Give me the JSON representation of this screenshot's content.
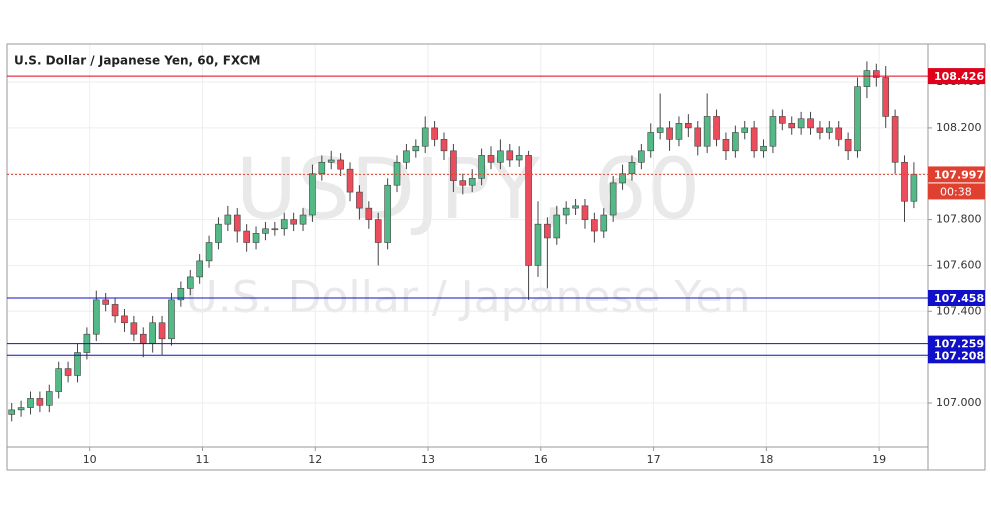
{
  "chart_data": {
    "type": "candlestick",
    "title": "U.S. Dollar / Japanese Yen, 60, FXCM",
    "watermark": "USDJPY, 60",
    "watermark_subtitle": "U.S. Dollar / Japanese Yen",
    "countdown": "00:38",
    "up_color": "#53b987",
    "down_color": "#eb4d5c",
    "open": [
      106.95,
      106.97,
      106.98,
      107.02,
      106.99,
      107.05,
      107.15,
      107.12,
      107.22,
      107.3,
      107.45,
      107.43,
      107.38,
      107.35,
      107.3,
      107.26,
      107.35,
      107.28,
      107.45,
      107.5,
      107.55,
      107.62,
      107.7,
      107.78,
      107.82,
      107.75,
      107.7,
      107.74,
      107.76,
      107.76,
      107.8,
      107.78,
      107.82,
      108.0,
      108.05,
      108.06,
      108.02,
      107.92,
      107.85,
      107.8,
      107.7,
      107.95,
      108.05,
      108.1,
      108.12,
      108.2,
      108.15,
      108.1,
      107.97,
      107.95,
      107.98,
      108.08,
      108.05,
      108.1,
      108.06,
      108.08,
      107.6,
      107.78,
      107.72,
      107.82,
      107.85,
      107.86,
      107.8,
      107.75,
      107.82,
      107.96,
      108.0,
      108.05,
      108.1,
      108.18,
      108.2,
      108.15,
      108.22,
      108.2,
      108.12,
      108.25,
      108.15,
      108.1,
      108.18,
      108.2,
      108.1,
      108.12,
      108.25,
      108.22,
      108.2,
      108.24,
      108.2,
      108.18,
      108.2,
      108.15,
      108.1,
      108.38,
      108.45,
      108.42,
      108.25,
      108.05,
      107.88
    ],
    "high": [
      107.0,
      107.01,
      107.05,
      107.05,
      107.08,
      107.18,
      107.18,
      107.26,
      107.33,
      107.49,
      107.48,
      107.46,
      107.41,
      107.38,
      107.33,
      107.38,
      107.38,
      107.48,
      107.53,
      107.58,
      107.65,
      107.73,
      107.81,
      107.86,
      107.85,
      107.78,
      107.77,
      107.79,
      107.79,
      107.83,
      107.83,
      107.85,
      108.04,
      108.08,
      108.1,
      108.09,
      108.05,
      107.95,
      107.88,
      107.83,
      107.98,
      108.08,
      108.13,
      108.15,
      108.25,
      108.23,
      108.18,
      108.13,
      108.0,
      108.02,
      108.11,
      108.12,
      108.15,
      108.13,
      108.12,
      108.1,
      107.88,
      107.81,
      107.86,
      107.88,
      107.89,
      107.89,
      107.83,
      107.85,
      107.99,
      108.04,
      108.08,
      108.13,
      108.22,
      108.35,
      108.23,
      108.25,
      108.26,
      108.23,
      108.35,
      108.28,
      108.18,
      108.21,
      108.23,
      108.23,
      108.15,
      108.28,
      108.28,
      108.25,
      108.27,
      108.27,
      108.23,
      108.23,
      108.23,
      108.18,
      108.42,
      108.49,
      108.48,
      108.47,
      108.28,
      108.08,
      108.05
    ],
    "low": [
      106.92,
      106.94,
      106.95,
      106.96,
      106.96,
      107.02,
      107.09,
      107.09,
      107.19,
      107.27,
      107.4,
      107.35,
      107.31,
      107.27,
      107.2,
      107.22,
      107.21,
      107.25,
      107.42,
      107.47,
      107.52,
      107.59,
      107.67,
      107.75,
      107.7,
      107.66,
      107.67,
      107.71,
      107.73,
      107.73,
      107.75,
      107.75,
      107.79,
      107.97,
      108.02,
      107.99,
      107.88,
      107.8,
      107.76,
      107.6,
      107.67,
      107.92,
      108.02,
      108.07,
      108.09,
      108.12,
      108.06,
      107.92,
      107.91,
      107.92,
      107.95,
      108.02,
      108.02,
      108.03,
      108.03,
      107.45,
      107.55,
      107.5,
      107.69,
      107.78,
      107.82,
      107.76,
      107.7,
      107.72,
      107.79,
      107.93,
      107.97,
      108.02,
      108.07,
      108.15,
      108.1,
      108.12,
      108.16,
      108.08,
      108.09,
      108.12,
      108.06,
      108.07,
      108.15,
      108.07,
      108.07,
      108.09,
      108.19,
      108.17,
      108.17,
      108.17,
      108.15,
      108.15,
      108.12,
      108.06,
      108.07,
      108.33,
      108.38,
      108.2,
      108.0,
      107.79,
      107.85
    ],
    "close": [
      106.97,
      106.98,
      107.02,
      106.99,
      107.05,
      107.15,
      107.12,
      107.22,
      107.3,
      107.45,
      107.43,
      107.38,
      107.35,
      107.3,
      107.26,
      107.35,
      107.28,
      107.45,
      107.5,
      107.55,
      107.62,
      107.7,
      107.78,
      107.82,
      107.75,
      107.7,
      107.74,
      107.76,
      107.76,
      107.8,
      107.78,
      107.82,
      108.0,
      108.05,
      108.06,
      108.02,
      107.92,
      107.85,
      107.8,
      107.7,
      107.95,
      108.05,
      108.1,
      108.12,
      108.2,
      108.15,
      108.1,
      107.97,
      107.95,
      107.98,
      108.08,
      108.05,
      108.1,
      108.06,
      108.08,
      107.6,
      107.78,
      107.72,
      107.82,
      107.85,
      107.86,
      107.8,
      107.75,
      107.82,
      107.96,
      108.0,
      108.05,
      108.1,
      108.18,
      108.2,
      108.15,
      108.22,
      108.2,
      108.12,
      108.25,
      108.15,
      108.1,
      108.18,
      108.2,
      108.1,
      108.12,
      108.25,
      108.22,
      108.2,
      108.24,
      108.2,
      108.18,
      108.2,
      108.15,
      108.1,
      108.38,
      108.45,
      108.42,
      108.25,
      108.05,
      107.88,
      107.997
    ],
    "xlim": [
      -0.5,
      97.5
    ],
    "xticks": [
      {
        "value": 8.3,
        "label": "10"
      },
      {
        "value": 20.3,
        "label": "11"
      },
      {
        "value": 32.3,
        "label": "12"
      },
      {
        "value": 44.3,
        "label": "13"
      },
      {
        "value": 56.3,
        "label": "16"
      },
      {
        "value": 68.3,
        "label": "17"
      },
      {
        "value": 80.3,
        "label": "18"
      },
      {
        "value": 92.3,
        "label": "19"
      }
    ],
    "ylim": [
      106.808,
      108.566
    ],
    "yticks": [
      {
        "value": 107.0,
        "label": "107.000"
      },
      {
        "value": 107.2,
        "label": "107.200"
      },
      {
        "value": 107.4,
        "label": "107.400"
      },
      {
        "value": 107.6,
        "label": "107.600"
      },
      {
        "value": 107.8,
        "label": "107.800"
      },
      {
        "value": 108.0,
        "label": "108.000"
      },
      {
        "value": 108.2,
        "label": "108.200"
      },
      {
        "value": 108.4,
        "label": "108.400"
      }
    ],
    "grid": true,
    "levels": [
      {
        "value": 108.426,
        "color": "#e0001a",
        "style": "solid"
      },
      {
        "value": 107.997,
        "color": "#e0402f",
        "style": "dotted"
      },
      {
        "value": 107.458,
        "color": "#1010c8",
        "style": "solid"
      },
      {
        "value": 107.259,
        "color": "#1010c8",
        "style": "solid"
      },
      {
        "value": 107.208,
        "color": "#1010c8",
        "style": "solid"
      }
    ]
  }
}
